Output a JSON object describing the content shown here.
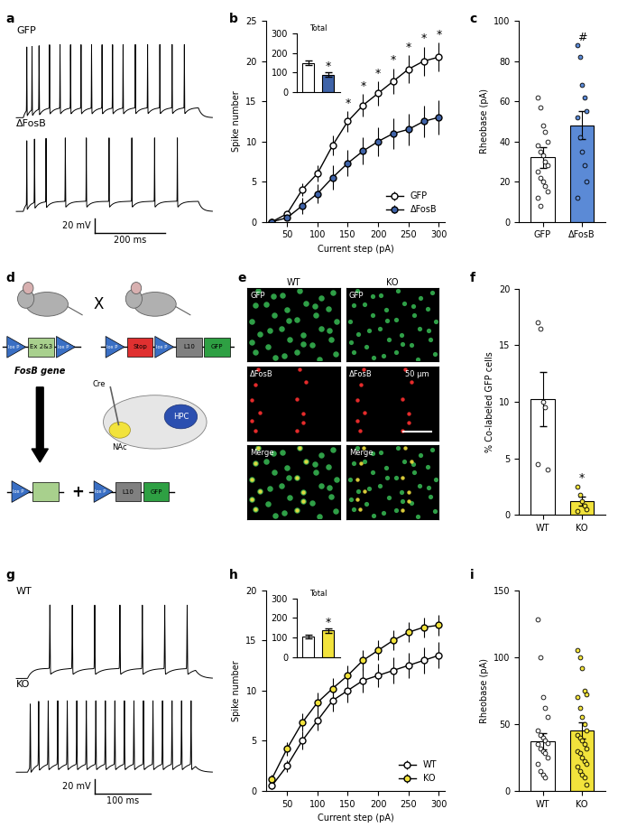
{
  "panel_letters": [
    "a",
    "b",
    "c",
    "d",
    "e",
    "f",
    "g",
    "h",
    "i"
  ],
  "traces": [
    {
      "labels": [
        "GFP",
        "ΔFosB"
      ],
      "duration_ms": 560,
      "step_ms": [
        20,
        520
      ],
      "spike_times_ms": [
        [
          30,
          45,
          65,
          95,
          125,
          155,
          185,
          215,
          245,
          275,
          305,
          340,
          375,
          410,
          445,
          480
        ],
        [
          30,
          52,
          85,
          140,
          200,
          265,
          330,
          395,
          460
        ]
      ],
      "scale_bar": {
        "mV": 20,
        "ms": 200,
        "labels": [
          "20 mV",
          "200 ms"
        ]
      }
    },
    {
      "labels": [
        "WT",
        "KO"
      ],
      "duration_ms": 350,
      "step_ms": [
        20,
        320
      ],
      "spike_times_ms": [
        [
          60,
          100,
          140,
          185,
          225,
          265,
          305
        ],
        [
          25,
          40,
          57,
          74,
          91,
          108,
          125,
          142,
          159,
          176,
          193,
          210,
          227,
          244,
          261,
          278,
          295,
          312
        ]
      ],
      "scale_bar": {
        "mV": 20,
        "ms": 100,
        "labels": [
          "20 mV",
          "100 ms"
        ]
      }
    }
  ],
  "chart_data": [
    {
      "type": "line",
      "xlabel": "Current step (pA)",
      "ylabel": "Spike number",
      "x": [
        25,
        50,
        75,
        100,
        125,
        150,
        175,
        200,
        225,
        250,
        275,
        300
      ],
      "xlim": [
        15,
        310
      ],
      "xticks": [
        50,
        100,
        150,
        200,
        250,
        300
      ],
      "ylim": [
        0,
        25
      ],
      "yticks": [
        0,
        5,
        10,
        15,
        20,
        25
      ],
      "legend": "lower right",
      "series": [
        {
          "name": "GFP",
          "color": "#ffffff",
          "marker": "o",
          "values": [
            0,
            1,
            4,
            6,
            9.5,
            12.5,
            14.5,
            16,
            17.5,
            19,
            20,
            20.5
          ],
          "errors": [
            0,
            0.3,
            0.8,
            1,
            1.2,
            1.3,
            1.4,
            1.5,
            1.6,
            1.7,
            1.8,
            1.8
          ]
        },
        {
          "name": "ΔFosB",
          "color": "#3f63a8",
          "marker": "o",
          "values": [
            0,
            0.5,
            2,
            3.5,
            5.5,
            7.3,
            8.8,
            10,
            11,
            11.5,
            12.5,
            13
          ],
          "errors": [
            0,
            0.3,
            1,
            1.2,
            1.5,
            1.6,
            1.7,
            1.8,
            1.9,
            2,
            2,
            2.1
          ]
        }
      ],
      "annotations": [
        {
          "text": "*",
          "x": [
            150,
            175,
            200,
            225,
            250,
            275,
            300
          ]
        }
      ]
    },
    {
      "type": "bar",
      "title": "Total",
      "categories": [
        null,
        null
      ],
      "values": [
        150,
        90
      ],
      "errors": [
        12,
        10
      ],
      "colors": [
        "#ffffff",
        "#3f63a8"
      ],
      "ylim": [
        0,
        300
      ],
      "yticks": [
        0,
        100,
        200,
        300
      ],
      "tick_labels": "y",
      "annotations": [
        {
          "index": 1,
          "text": "*"
        }
      ]
    },
    {
      "type": "bar",
      "ylabel": "Rheobase (pA)",
      "categories": [
        "GFP",
        "ΔFosB"
      ],
      "values": [
        32,
        48
      ],
      "errors": [
        5,
        7
      ],
      "colors": [
        "#ffffff",
        "#5b8ad6"
      ],
      "ylim": [
        0,
        100
      ],
      "yticks": [
        0,
        20,
        40,
        60,
        80,
        100
      ],
      "points": [
        [
          62,
          57,
          48,
          45,
          40,
          38,
          35,
          33,
          30,
          28,
          25,
          22,
          20,
          18,
          15,
          12,
          8
        ],
        [
          88,
          82,
          68,
          62,
          55,
          52,
          42,
          35,
          28,
          20,
          12
        ]
      ],
      "annotations": [
        {
          "index": 1,
          "text": "#"
        }
      ]
    },
    {
      "type": "bar",
      "ylabel": "% Co-labeled GFP cells",
      "categories": [
        "WT",
        "KO"
      ],
      "values": [
        10.2,
        1.2
      ],
      "errors": [
        2.4,
        0.4
      ],
      "colors": [
        "#ffffff",
        "#f2e33c"
      ],
      "ylim": [
        0,
        20
      ],
      "yticks": [
        0,
        5,
        10,
        15,
        20
      ],
      "points": [
        [
          17,
          16.5,
          10,
          9.5,
          4,
          4.5
        ],
        [
          2.5,
          1.8,
          1.2,
          0.8,
          0.5,
          0.3
        ]
      ],
      "annotations": [
        {
          "index": 1,
          "text": "*"
        }
      ]
    },
    {
      "type": "line",
      "xlabel": "Current step (pA)",
      "ylabel": "Spike number",
      "x": [
        25,
        50,
        75,
        100,
        125,
        150,
        175,
        200,
        225,
        250,
        275,
        300
      ],
      "xlim": [
        15,
        310
      ],
      "xticks": [
        50,
        100,
        150,
        200,
        250,
        300
      ],
      "ylim": [
        0,
        20
      ],
      "yticks": [
        0,
        5,
        10,
        15,
        20
      ],
      "legend": "lower right",
      "series": [
        {
          "name": "WT",
          "color": "#ffffff",
          "marker": "o",
          "values": [
            0.5,
            2.5,
            5,
            7,
            9,
            10,
            11,
            11.5,
            12,
            12.5,
            13,
            13.5
          ],
          "errors": [
            0.3,
            0.6,
            0.9,
            1,
            1.1,
            1.2,
            1.2,
            1.2,
            1.3,
            1.3,
            1.3,
            1.3
          ]
        },
        {
          "name": "KO",
          "color": "#f2e33c",
          "marker": "o",
          "values": [
            1.2,
            4.2,
            6.8,
            8.8,
            10.2,
            11.5,
            13,
            14,
            15,
            15.8,
            16.3,
            16.5
          ],
          "errors": [
            0.4,
            0.7,
            0.9,
            1,
            1,
            1,
            1,
            1,
            1,
            1,
            1,
            1
          ]
        }
      ]
    },
    {
      "type": "bar",
      "title": "Total",
      "categories": [
        null,
        null
      ],
      "values": [
        105,
        135
      ],
      "errors": [
        8,
        10
      ],
      "colors": [
        "#ffffff",
        "#f2e33c"
      ],
      "ylim": [
        0,
        300
      ],
      "yticks": [
        0,
        100,
        200,
        300
      ],
      "tick_labels": "y",
      "annotations": [
        {
          "index": 1,
          "text": "*"
        }
      ]
    },
    {
      "type": "bar",
      "ylabel": "Rheobase (pA)",
      "categories": [
        "WT",
        "KO"
      ],
      "values": [
        37,
        45
      ],
      "errors": [
        6,
        6
      ],
      "colors": [
        "#ffffff",
        "#f2e33c"
      ],
      "ylim": [
        0,
        150
      ],
      "yticks": [
        0,
        50,
        100,
        150
      ],
      "points": [
        [
          128,
          100,
          70,
          62,
          55,
          45,
          42,
          40,
          38,
          36,
          35,
          32,
          30,
          28,
          25,
          20,
          15,
          12,
          10
        ],
        [
          105,
          100,
          92,
          75,
          72,
          70,
          62,
          55,
          50,
          45,
          42,
          40,
          38,
          35,
          32,
          30,
          28,
          25,
          22,
          20,
          18,
          15,
          12,
          10,
          5
        ]
      ]
    }
  ],
  "diagram": {
    "gene_construct": [
      {
        "text": "lox P",
        "shape": "triangle",
        "color": "#3a6fc4"
      },
      {
        "text": "Ex 2&3",
        "shape": "box",
        "color": "#a8d08d"
      },
      {
        "text": "lox P",
        "shape": "triangle",
        "color": "#3a6fc4"
      }
    ],
    "gene_label": "FosB gene",
    "cross": "X",
    "reporter_construct": [
      {
        "text": "lox P",
        "shape": "triangle",
        "color": "#3a6fc4"
      },
      {
        "text": "Stop",
        "shape": "box",
        "color": "#e03030"
      },
      {
        "text": "lox P",
        "shape": "triangle",
        "color": "#3a6fc4"
      },
      {
        "text": "L10",
        "shape": "box",
        "color": "#808080"
      },
      {
        "text": "GFP",
        "shape": "box",
        "color": "#2ea043"
      }
    ],
    "brain": {
      "injection": "Cre",
      "target": "NAc",
      "other": "HPC"
    },
    "result_left": [
      {
        "text": "lox P",
        "shape": "triangle",
        "color": "#3a6fc4"
      },
      {
        "shape": "box",
        "color": "#a8d08d"
      }
    ],
    "joiner": "+",
    "result_right": [
      {
        "text": "lox P",
        "shape": "triangle",
        "color": "#3a6fc4"
      },
      {
        "text": "L10",
        "shape": "box",
        "color": "#808080"
      },
      {
        "text": "GFP",
        "shape": "box",
        "color": "#2ea043"
      }
    ]
  },
  "micrographs": {
    "columns": [
      "WT",
      "KO"
    ],
    "rows": [
      "GFP",
      "ΔFosB",
      "Merge"
    ],
    "scale_bar": "50 μm"
  }
}
